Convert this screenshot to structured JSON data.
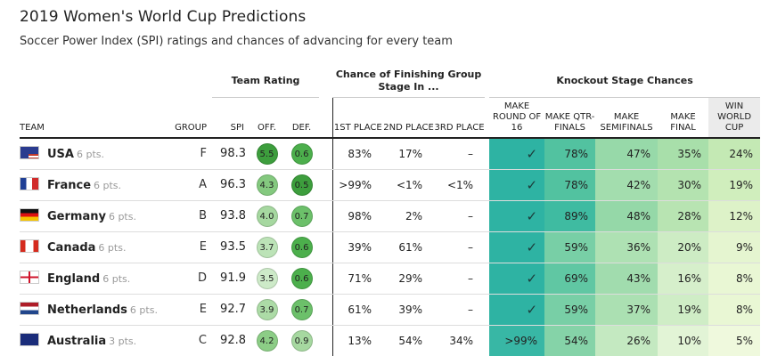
{
  "title": "2019 Women's World Cup Predictions",
  "subtitle": "Soccer Power Index (SPI) ratings and chances of advancing for every team",
  "group_headers": {
    "team_rating": "Team Rating",
    "group_stage": "Chance of Finishing Group Stage In ...",
    "knockout": "Knockout Stage Chances"
  },
  "columns": {
    "team": "TEAM",
    "group": "GROUP",
    "spi": "SPI",
    "off": "OFF.",
    "def": "DEF.",
    "first": "1ST PLACE",
    "second": "2ND PLACE",
    "third": "3RD PLACE",
    "r16": "MAKE ROUND OF 16",
    "qf": "MAKE QTR-FINALS",
    "sf": "MAKE SEMIFINALS",
    "final": "MAKE FINAL",
    "win": "WIN WORLD CUP"
  },
  "teams": [
    {
      "name": "USA",
      "pts": "6 pts.",
      "flag": "usa",
      "group": "F",
      "spi": "98.3",
      "off": "5.5",
      "def": "0.6",
      "off_color": "#3d9e3d",
      "def_color": "#4caf4c",
      "first": "83%",
      "second": "17%",
      "third": "–",
      "r16": "✓",
      "qf": "78%",
      "sf": "47%",
      "final": "35%",
      "win": "24%"
    },
    {
      "name": "France",
      "pts": "6 pts.",
      "flag": "france",
      "group": "A",
      "spi": "96.3",
      "off": "4.3",
      "def": "0.5",
      "off_color": "#84c97f",
      "def_color": "#3d9e3d",
      "first": ">99%",
      "second": "<1%",
      "third": "<1%",
      "r16": "✓",
      "qf": "78%",
      "sf": "42%",
      "final": "30%",
      "win": "19%"
    },
    {
      "name": "Germany",
      "pts": "6 pts.",
      "flag": "germany",
      "group": "B",
      "spi": "93.8",
      "off": "4.0",
      "def": "0.7",
      "off_color": "#a6d8a0",
      "def_color": "#6cc06a",
      "first": "98%",
      "second": "2%",
      "third": "–",
      "r16": "✓",
      "qf": "89%",
      "sf": "48%",
      "final": "28%",
      "win": "12%"
    },
    {
      "name": "Canada",
      "pts": "6 pts.",
      "flag": "canada",
      "group": "E",
      "spi": "93.5",
      "off": "3.7",
      "def": "0.6",
      "off_color": "#bce3b7",
      "def_color": "#4caf4c",
      "first": "39%",
      "second": "61%",
      "third": "–",
      "r16": "✓",
      "qf": "59%",
      "sf": "36%",
      "final": "20%",
      "win": "9%"
    },
    {
      "name": "England",
      "pts": "6 pts.",
      "flag": "england",
      "group": "D",
      "spi": "91.9",
      "off": "3.5",
      "def": "0.6",
      "off_color": "#cdeac8",
      "def_color": "#4caf4c",
      "first": "71%",
      "second": "29%",
      "third": "–",
      "r16": "✓",
      "qf": "69%",
      "sf": "43%",
      "final": "16%",
      "win": "8%"
    },
    {
      "name": "Netherlands",
      "pts": "6 pts.",
      "flag": "netherlands",
      "group": "E",
      "spi": "92.7",
      "off": "3.9",
      "def": "0.7",
      "off_color": "#acdba6",
      "def_color": "#6cc06a",
      "first": "61%",
      "second": "39%",
      "third": "–",
      "r16": "✓",
      "qf": "59%",
      "sf": "37%",
      "final": "19%",
      "win": "8%"
    },
    {
      "name": "Australia",
      "pts": "3 pts.",
      "flag": "australia",
      "group": "C",
      "spi": "92.8",
      "off": "4.2",
      "def": "0.9",
      "off_color": "#8ccd86",
      "def_color": "#a6d8a0",
      "first": "13%",
      "second": "54%",
      "third": "34%",
      "r16": ">99%",
      "qf": "54%",
      "sf": "26%",
      "final": "10%",
      "win": "5%"
    }
  ],
  "colors": {
    "r16": [
      "#2eb3a3",
      "#2eb3a3",
      "#2eb3a3",
      "#2eb3a3",
      "#2eb3a3",
      "#2eb3a3",
      "#38b7a5"
    ],
    "qf": [
      "#52c2a0",
      "#52c2a0",
      "#3fbba1",
      "#78cfa6",
      "#60c7a3",
      "#78cfa6",
      "#85d3a8"
    ],
    "sf": [
      "#97d9a9",
      "#a3ddae",
      "#95d8a8",
      "#aee1b3",
      "#a1dcae",
      "#abe0b2",
      "#c4e9c1"
    ],
    "final": [
      "#a8dfaa",
      "#b4e3b0",
      "#b8e4b2",
      "#cdecc4",
      "#d6efcb",
      "#cfedc6",
      "#e2f4d6"
    ],
    "win": [
      "#c4e9b4",
      "#d0eebd",
      "#ddf2c8",
      "#e5f5d0",
      "#e9f7d4",
      "#e9f7d4",
      "#eff9dd"
    ]
  }
}
